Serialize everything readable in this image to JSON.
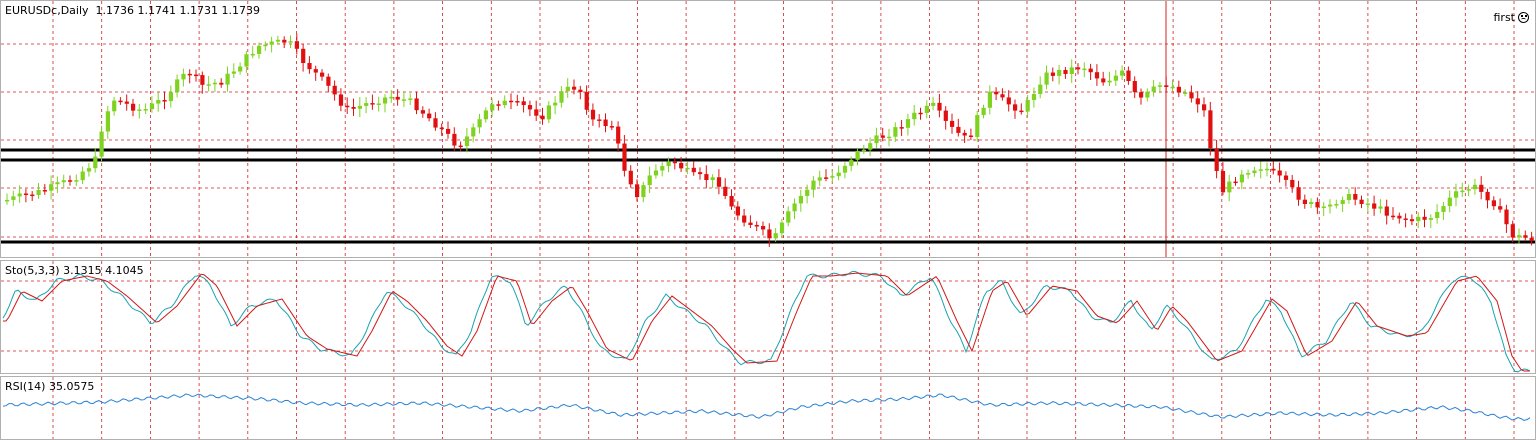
{
  "main": {
    "symbol_label": "EURUSDc,Daily  1.1736 1.1741 1.1731 1.1739",
    "corner_label": "first",
    "corner_icon": "smiley-face-icon",
    "colors": {
      "bull": "#7ed321",
      "bear": "#e01010",
      "grid": "#d42020",
      "level": "#000000"
    }
  },
  "stochastic": {
    "label": "Sto(5,3,3) 3.1315 4.1045",
    "colors": {
      "main": "#1aa3b0",
      "signal": "#d01818"
    }
  },
  "rsi": {
    "label": "RSI(14) 35.0575",
    "colors": {
      "line": "#2a82d4"
    }
  }
}
